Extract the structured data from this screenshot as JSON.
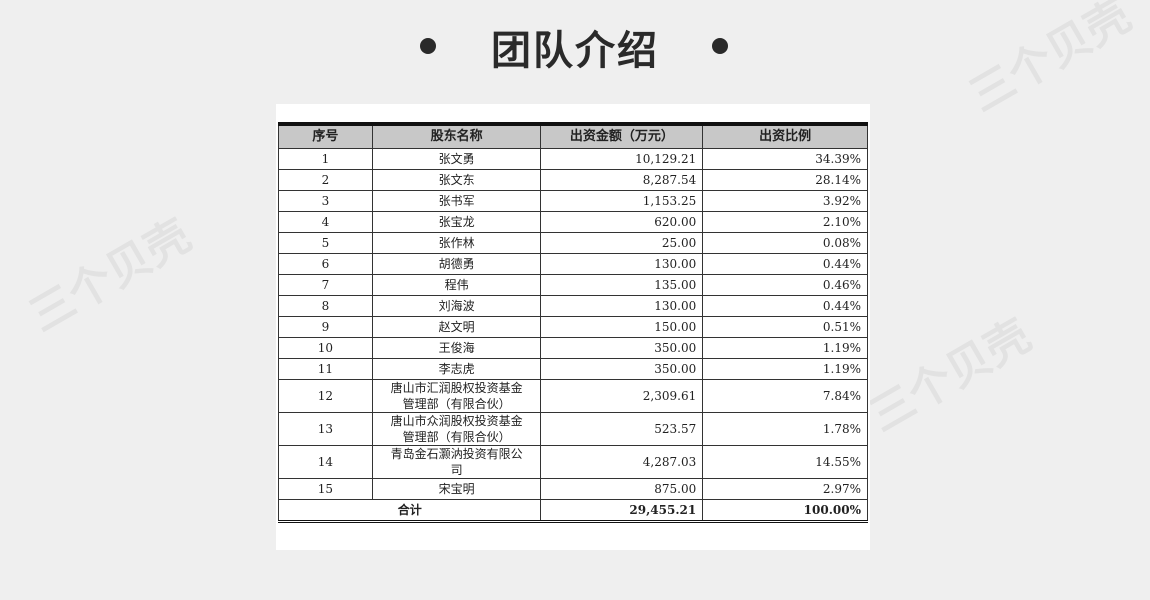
{
  "watermark": "三个贝壳",
  "title": "团队介绍",
  "table": {
    "headers": [
      "序号",
      "股东名称",
      "出资金额（万元）",
      "出资比例"
    ],
    "rows": [
      [
        "1",
        "张文勇",
        "10,129.21",
        "34.39%"
      ],
      [
        "2",
        "张文东",
        "8,287.54",
        "28.14%"
      ],
      [
        "3",
        "张书军",
        "1,153.25",
        "3.92%"
      ],
      [
        "4",
        "张宝龙",
        "620.00",
        "2.10%"
      ],
      [
        "5",
        "张作林",
        "25.00",
        "0.08%"
      ],
      [
        "6",
        "胡德勇",
        "130.00",
        "0.44%"
      ],
      [
        "7",
        "程伟",
        "135.00",
        "0.46%"
      ],
      [
        "8",
        "刘海波",
        "130.00",
        "0.44%"
      ],
      [
        "9",
        "赵文明",
        "150.00",
        "0.51%"
      ],
      [
        "10",
        "王俊海",
        "350.00",
        "1.19%"
      ],
      [
        "11",
        "李志虎",
        "350.00",
        "1.19%"
      ],
      [
        "12",
        "唐山市汇润股权投资基金管理部（有限合伙）",
        "2,309.61",
        "7.84%"
      ],
      [
        "13",
        "唐山市众润股权投资基金管理部（有限合伙）",
        "523.57",
        "1.78%"
      ],
      [
        "14",
        "青岛金石灏汭投资有限公司",
        "4,287.03",
        "14.55%"
      ],
      [
        "15",
        "宋宝明",
        "875.00",
        "2.97%"
      ]
    ],
    "total": {
      "label": "合计",
      "amount": "29,455.21",
      "ratio": "100.00%"
    }
  }
}
